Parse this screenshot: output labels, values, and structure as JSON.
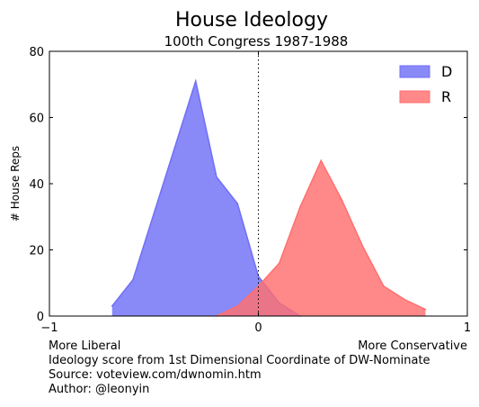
{
  "chart_data": {
    "type": "area",
    "title": "House Ideology",
    "subtitle": "100th Congress 1987-1988",
    "ylabel": "# House Reps",
    "xlim": [
      -1,
      1
    ],
    "ylim": [
      0,
      80
    ],
    "xticks": [
      -1,
      0,
      1
    ],
    "yticks": [
      0,
      20,
      40,
      60,
      80
    ],
    "reference_line_x": 0,
    "legend_position": "top-right",
    "series": [
      {
        "name": "D",
        "color": "#6f6ff7",
        "x": [
          -0.7,
          -0.6,
          -0.5,
          -0.4,
          -0.3,
          -0.2,
          -0.1,
          0.0,
          0.1,
          0.2
        ],
        "y": [
          3,
          11,
          31,
          51,
          71,
          42,
          34,
          12,
          4,
          0
        ]
      },
      {
        "name": "R",
        "color": "#ff6f6f",
        "x": [
          -0.2,
          -0.1,
          0.0,
          0.1,
          0.2,
          0.3,
          0.4,
          0.5,
          0.6,
          0.7,
          0.8
        ],
        "y": [
          0,
          3,
          9,
          16,
          33,
          47,
          35,
          21,
          9,
          5,
          2
        ]
      }
    ]
  },
  "footer": {
    "left_label": "More Liberal",
    "right_label": "More Conservative",
    "line1": "Ideology score from 1st Dimensional Coordinate of DW-Nominate",
    "line2": "Source: voteview.com/dwnomin.htm",
    "line3": "Author: @leonyin"
  }
}
